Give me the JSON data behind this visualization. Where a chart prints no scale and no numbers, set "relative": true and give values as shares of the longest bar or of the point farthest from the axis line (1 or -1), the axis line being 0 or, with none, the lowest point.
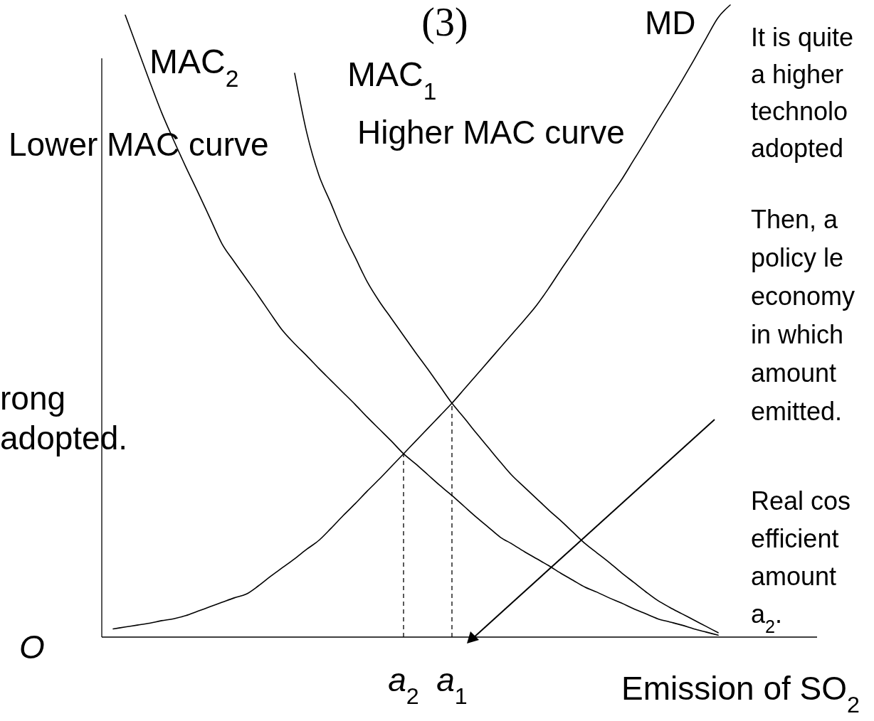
{
  "chart_data": {
    "type": "line",
    "title": "(3)",
    "xlabel": "Emission of SO$_{2}$",
    "relative": true,
    "tick_labels": "x",
    "line_style": "solid",
    "categories": [
      null,
      null,
      null,
      null,
      null,
      null,
      null,
      null,
      null,
      null,
      null,
      null,
      null,
      null,
      null,
      null,
      null,
      null,
      null,
      null,
      null,
      null,
      null,
      null,
      "a$_{2}$",
      null,
      null,
      null,
      "a$_{1}$",
      null,
      null,
      null,
      null,
      null,
      null,
      null,
      null,
      null,
      null,
      null,
      null,
      null,
      null,
      null,
      null,
      null,
      null,
      null,
      null,
      null,
      null,
      null,
      null
    ],
    "series": [
      {
        "name": "MAC$_{2}$",
        "color": "#000000",
        "values": [
          null,
          0.984,
          0.932,
          0.88,
          0.83,
          0.786,
          0.744,
          0.704,
          0.663,
          0.622,
          0.594,
          0.567,
          0.54,
          0.512,
          0.485,
          0.464,
          0.445,
          0.425,
          0.406,
          0.387,
          0.368,
          0.348,
          0.329,
          0.31,
          0.29,
          0.274,
          0.257,
          0.24,
          0.224,
          0.207,
          0.19,
          0.174,
          0.158,
          0.147,
          0.135,
          0.124,
          0.113,
          0.101,
          0.09,
          0.079,
          0.071,
          0.062,
          0.054,
          0.045,
          0.037,
          0.029,
          0.024,
          0.019,
          0.013,
          0.008,
          0.003,
          null,
          null
        ]
      },
      {
        "name": "MAC$_{1}$",
        "color": "#000000",
        "values": [
          null,
          null,
          null,
          null,
          null,
          null,
          null,
          null,
          null,
          null,
          null,
          null,
          null,
          null,
          null,
          0.892,
          0.798,
          0.731,
          0.686,
          0.64,
          0.601,
          0.562,
          0.531,
          0.504,
          0.477,
          0.45,
          0.424,
          0.397,
          0.37,
          0.347,
          0.323,
          0.3,
          0.277,
          0.255,
          0.237,
          0.219,
          0.201,
          0.184,
          0.166,
          0.148,
          0.133,
          0.118,
          0.102,
          0.087,
          0.072,
          0.058,
          0.047,
          0.037,
          0.027,
          0.017,
          0.007,
          null,
          null
        ]
      },
      {
        "name": "MD",
        "color": "#000000",
        "values": [
          0.013,
          0.016,
          0.019,
          0.022,
          0.026,
          0.029,
          0.034,
          0.041,
          0.048,
          0.055,
          0.062,
          0.068,
          0.081,
          0.096,
          0.11,
          0.124,
          0.139,
          0.153,
          0.172,
          0.192,
          0.211,
          0.231,
          0.25,
          0.27,
          0.29,
          0.31,
          0.33,
          0.35,
          0.37,
          0.392,
          0.414,
          0.436,
          0.458,
          0.48,
          0.502,
          0.525,
          0.552,
          0.581,
          0.609,
          0.638,
          0.666,
          0.695,
          0.723,
          0.754,
          0.785,
          0.817,
          0.848,
          0.88,
          0.913,
          0.947,
          0.98,
          1.0,
          null
        ]
      }
    ],
    "ref_lines": [
      {
        "axis": "x",
        "value": "a$_{2}$",
        "line_style": "dashed"
      },
      {
        "axis": "x",
        "value": "a$_{1}$",
        "line_style": "dashed"
      }
    ],
    "annotations": [
      "Lower MAC curve",
      "Higher MAC curve",
      "rong\nadopted.",
      "It is quite\na higher\ntechnolo\nadopted",
      "Then, a\npolicy le\neconomy\nin which\namount\nemitted.",
      "Real cos\nefficient\namount\na$_{2}$.",
      "O"
    ]
  }
}
